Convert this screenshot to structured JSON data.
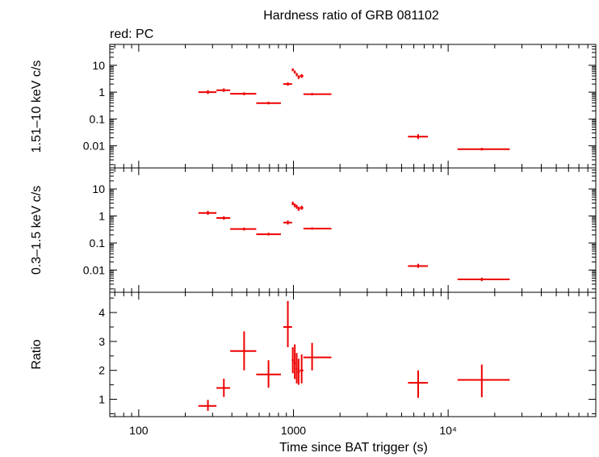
{
  "title": "Hardness ratio of GRB 081102",
  "subtitle": "red: PC",
  "xlabel": "Time since BAT trigger (s)",
  "colors": {
    "data": "#ee0000",
    "axes": "#000000"
  },
  "chart_data": [
    {
      "type": "scatter",
      "panel": "hard",
      "ylabel": "1.51–10 keV c/s",
      "yscale": "log",
      "ylim": [
        0.0015,
        60
      ],
      "xscale": "log",
      "xlim": [
        65,
        90000
      ],
      "yticks": [
        0.01,
        0.1,
        1,
        10
      ],
      "yticklabels": [
        "0.01",
        "0.1",
        "1",
        "10"
      ],
      "series": [
        {
          "points": [
            {
              "x": 280,
              "xlo": 243,
              "xhi": 318,
              "y": 1.0,
              "ylo": 0.85,
              "yhi": 1.18
            },
            {
              "x": 355,
              "xlo": 318,
              "xhi": 390,
              "y": 1.18,
              "ylo": 1.02,
              "yhi": 1.38
            },
            {
              "x": 480,
              "xlo": 390,
              "xhi": 575,
              "y": 0.87,
              "ylo": 0.77,
              "yhi": 0.98
            },
            {
              "x": 690,
              "xlo": 575,
              "xhi": 830,
              "y": 0.39,
              "ylo": 0.35,
              "yhi": 0.44
            },
            {
              "x": 920,
              "xlo": 860,
              "xhi": 980,
              "y": 2.0,
              "ylo": 1.75,
              "yhi": 2.3
            },
            {
              "x": 990,
              "xlo": 975,
              "xhi": 1005,
              "y": 6.8,
              "ylo": 6.0,
              "yhi": 7.7
            },
            {
              "x": 1020,
              "xlo": 1005,
              "xhi": 1035,
              "y": 5.6,
              "ylo": 4.9,
              "yhi": 6.4
            },
            {
              "x": 1050,
              "xlo": 1035,
              "xhi": 1065,
              "y": 4.5,
              "ylo": 3.9,
              "yhi": 5.2
            },
            {
              "x": 1080,
              "xlo": 1065,
              "xhi": 1100,
              "y": 3.6,
              "ylo": 3.1,
              "yhi": 4.2
            },
            {
              "x": 1130,
              "xlo": 1100,
              "xhi": 1160,
              "y": 4.0,
              "ylo": 3.4,
              "yhi": 4.7
            },
            {
              "x": 1320,
              "xlo": 1160,
              "xhi": 1760,
              "y": 0.84,
              "ylo": 0.76,
              "yhi": 0.93
            },
            {
              "x": 6400,
              "xlo": 5500,
              "xhi": 7400,
              "y": 0.022,
              "ylo": 0.018,
              "yhi": 0.027
            },
            {
              "x": 16500,
              "xlo": 11500,
              "xhi": 25000,
              "y": 0.0075,
              "ylo": 0.0067,
              "yhi": 0.0084
            }
          ]
        }
      ]
    },
    {
      "type": "scatter",
      "panel": "soft",
      "ylabel": "0.3–1.5 keV c/s",
      "yscale": "log",
      "ylim": [
        0.0015,
        60
      ],
      "xscale": "log",
      "xlim": [
        65,
        90000
      ],
      "yticks": [
        0.01,
        0.1,
        1,
        10
      ],
      "yticklabels": [
        "0.01",
        "0.1",
        "1",
        "10"
      ],
      "series": [
        {
          "points": [
            {
              "x": 280,
              "xlo": 243,
              "xhi": 318,
              "y": 1.3,
              "ylo": 1.1,
              "yhi": 1.55
            },
            {
              "x": 355,
              "xlo": 318,
              "xhi": 390,
              "y": 0.84,
              "ylo": 0.72,
              "yhi": 0.98
            },
            {
              "x": 480,
              "xlo": 390,
              "xhi": 575,
              "y": 0.33,
              "ylo": 0.29,
              "yhi": 0.37
            },
            {
              "x": 690,
              "xlo": 575,
              "xhi": 830,
              "y": 0.21,
              "ylo": 0.19,
              "yhi": 0.24
            },
            {
              "x": 920,
              "xlo": 860,
              "xhi": 980,
              "y": 0.57,
              "ylo": 0.48,
              "yhi": 0.68
            },
            {
              "x": 990,
              "xlo": 975,
              "xhi": 1005,
              "y": 2.9,
              "ylo": 2.5,
              "yhi": 3.4
            },
            {
              "x": 1020,
              "xlo": 1005,
              "xhi": 1035,
              "y": 2.5,
              "ylo": 2.1,
              "yhi": 2.9
            },
            {
              "x": 1050,
              "xlo": 1035,
              "xhi": 1065,
              "y": 2.2,
              "ylo": 1.85,
              "yhi": 2.6
            },
            {
              "x": 1080,
              "xlo": 1065,
              "xhi": 1100,
              "y": 1.85,
              "ylo": 1.55,
              "yhi": 2.2
            },
            {
              "x": 1130,
              "xlo": 1100,
              "xhi": 1160,
              "y": 2.0,
              "ylo": 1.7,
              "yhi": 2.4
            },
            {
              "x": 1320,
              "xlo": 1160,
              "xhi": 1760,
              "y": 0.34,
              "ylo": 0.31,
              "yhi": 0.38
            },
            {
              "x": 6400,
              "xlo": 5500,
              "xhi": 7400,
              "y": 0.014,
              "ylo": 0.012,
              "yhi": 0.017
            },
            {
              "x": 16500,
              "xlo": 11500,
              "xhi": 25000,
              "y": 0.0045,
              "ylo": 0.0039,
              "yhi": 0.0052
            }
          ]
        }
      ]
    },
    {
      "type": "scatter",
      "panel": "ratio",
      "ylabel": "Ratio",
      "yscale": "linear",
      "ylim": [
        0.4,
        4.7
      ],
      "xscale": "log",
      "xlim": [
        65,
        90000
      ],
      "yticks": [
        1,
        2,
        3,
        4
      ],
      "yticklabels": [
        "1",
        "2",
        "3",
        "4"
      ],
      "xticks": [
        100,
        1000,
        10000
      ],
      "xticklabels": [
        "100",
        "1000",
        "10⁴"
      ],
      "series": [
        {
          "points": [
            {
              "x": 280,
              "xlo": 243,
              "xhi": 318,
              "y": 0.77,
              "ylo": 0.6,
              "yhi": 0.98
            },
            {
              "x": 355,
              "xlo": 318,
              "xhi": 390,
              "y": 1.39,
              "ylo": 1.08,
              "yhi": 1.71
            },
            {
              "x": 480,
              "xlo": 390,
              "xhi": 575,
              "y": 2.67,
              "ylo": 2.0,
              "yhi": 3.35
            },
            {
              "x": 690,
              "xlo": 575,
              "xhi": 830,
              "y": 1.86,
              "ylo": 1.4,
              "yhi": 2.35
            },
            {
              "x": 920,
              "xlo": 860,
              "xhi": 980,
              "y": 3.5,
              "ylo": 2.8,
              "yhi": 4.4
            },
            {
              "x": 990,
              "xlo": 975,
              "xhi": 1005,
              "y": 2.35,
              "ylo": 1.9,
              "yhi": 2.8
            },
            {
              "x": 1020,
              "xlo": 1005,
              "xhi": 1035,
              "y": 2.25,
              "ylo": 1.7,
              "yhi": 2.9
            },
            {
              "x": 1050,
              "xlo": 1035,
              "xhi": 1065,
              "y": 2.05,
              "ylo": 1.55,
              "yhi": 2.6
            },
            {
              "x": 1080,
              "xlo": 1065,
              "xhi": 1100,
              "y": 1.95,
              "ylo": 1.5,
              "yhi": 2.4
            },
            {
              "x": 1130,
              "xlo": 1100,
              "xhi": 1160,
              "y": 2.0,
              "ylo": 1.55,
              "yhi": 2.55
            },
            {
              "x": 1320,
              "xlo": 1160,
              "xhi": 1760,
              "y": 2.45,
              "ylo": 2.0,
              "yhi": 2.95
            },
            {
              "x": 6400,
              "xlo": 5500,
              "xhi": 7400,
              "y": 1.57,
              "ylo": 1.05,
              "yhi": 2.0
            },
            {
              "x": 16500,
              "xlo": 11500,
              "xhi": 25000,
              "y": 1.67,
              "ylo": 1.07,
              "yhi": 2.2
            }
          ]
        }
      ]
    }
  ]
}
